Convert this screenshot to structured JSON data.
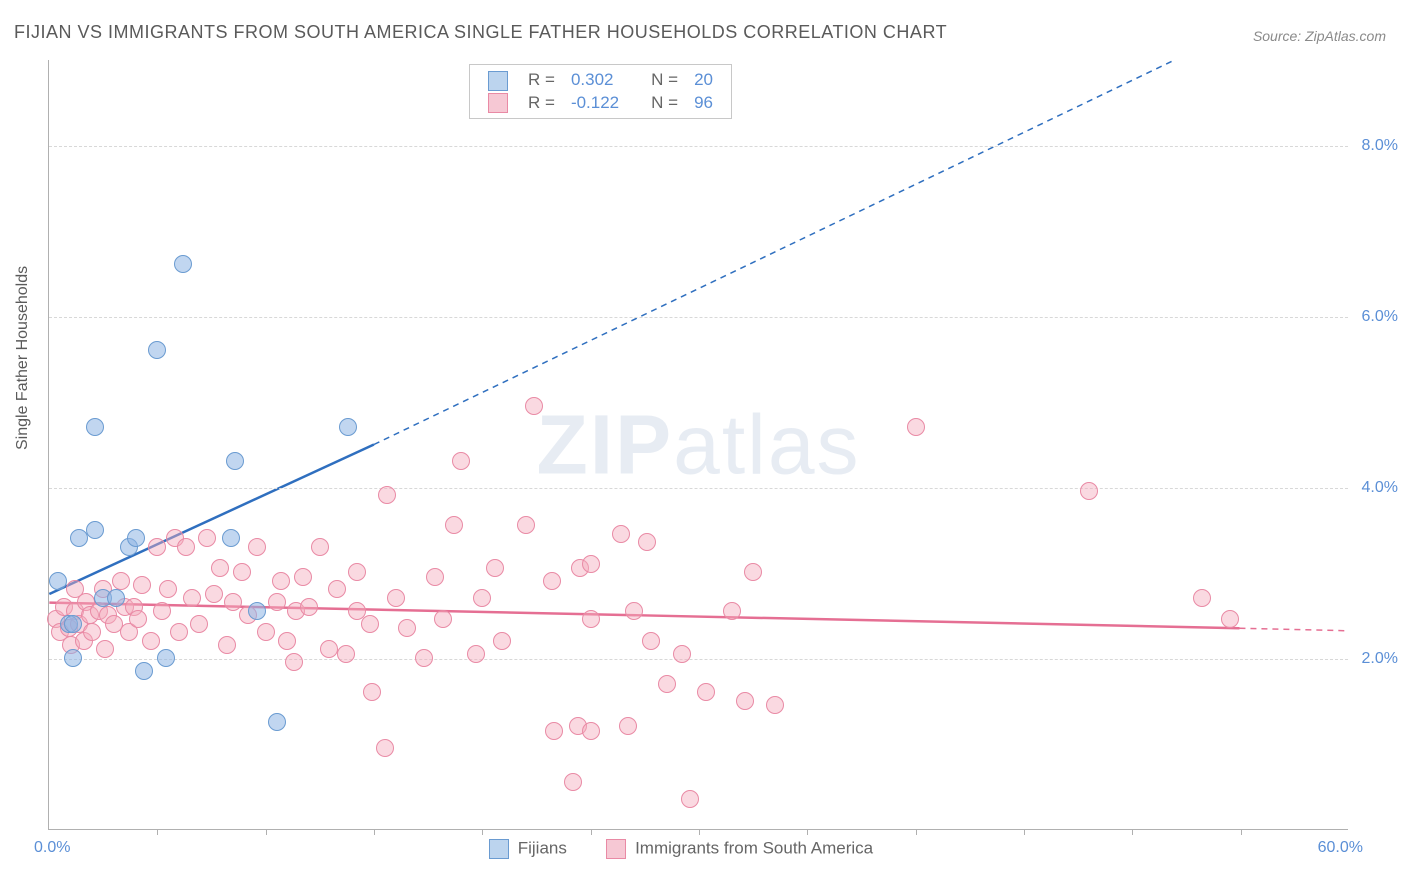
{
  "title": "FIJIAN VS IMMIGRANTS FROM SOUTH AMERICA SINGLE FATHER HOUSEHOLDS CORRELATION CHART",
  "source": "Source: ZipAtlas.com",
  "y_axis_label": "Single Father Households",
  "watermark_bold": "ZIP",
  "watermark_rest": "atlas",
  "chart": {
    "type": "scatter",
    "xlim": [
      0,
      60
    ],
    "ylim": [
      0,
      9
    ],
    "x_start_label": "0.0%",
    "x_end_label": "60.0%",
    "x_ticks": [
      5,
      10,
      15,
      20,
      25,
      30,
      35,
      40,
      45,
      50,
      55
    ],
    "y_gridlines": [
      {
        "value": 2.0,
        "label": "2.0%"
      },
      {
        "value": 4.0,
        "label": "4.0%"
      },
      {
        "value": 6.0,
        "label": "6.0%"
      },
      {
        "value": 8.0,
        "label": "8.0%"
      }
    ],
    "background_color": "#ffffff",
    "grid_color": "#d8d8d8",
    "axis_color": "#b0b0b0",
    "point_radius": 9,
    "series": [
      {
        "name": "Fijians",
        "fill": "rgba(142,180,227,0.55)",
        "stroke": "#6a9bd1",
        "R": "0.302",
        "N": "20",
        "swatch_fill": "#bcd4ee",
        "swatch_border": "#6a9bd1",
        "points": [
          [
            0.4,
            2.9
          ],
          [
            0.9,
            2.4
          ],
          [
            1.1,
            2.4
          ],
          [
            1.1,
            2.0
          ],
          [
            1.4,
            3.4
          ],
          [
            2.1,
            4.7
          ],
          [
            2.1,
            3.5
          ],
          [
            2.5,
            2.7
          ],
          [
            3.1,
            2.7
          ],
          [
            3.7,
            3.3
          ],
          [
            4.4,
            1.85
          ],
          [
            4.0,
            3.4
          ],
          [
            5.0,
            5.6
          ],
          [
            6.2,
            6.6
          ],
          [
            5.4,
            2.0
          ],
          [
            8.4,
            3.4
          ],
          [
            8.6,
            4.3
          ],
          [
            9.6,
            2.55
          ],
          [
            10.5,
            1.25
          ],
          [
            13.8,
            4.7
          ]
        ],
        "trend": {
          "color": "#2f6fbf",
          "solid": {
            "x1": 0,
            "y1": 2.75,
            "x2": 15,
            "y2": 4.5
          },
          "dashed": {
            "x1": 15,
            "y1": 4.5,
            "x2": 52,
            "y2": 9.0
          }
        }
      },
      {
        "name": "Immigrants from South America",
        "fill": "rgba(244,170,189,0.45)",
        "stroke": "#e98aa5",
        "R": "-0.122",
        "N": "96",
        "swatch_fill": "#f6c8d4",
        "swatch_border": "#e98aa5",
        "points": [
          [
            0.3,
            2.45
          ],
          [
            0.5,
            2.3
          ],
          [
            0.7,
            2.6
          ],
          [
            0.9,
            2.35
          ],
          [
            1.0,
            2.15
          ],
          [
            1.2,
            2.55
          ],
          [
            1.2,
            2.8
          ],
          [
            1.4,
            2.4
          ],
          [
            1.6,
            2.2
          ],
          [
            1.7,
            2.65
          ],
          [
            1.9,
            2.5
          ],
          [
            2.0,
            2.3
          ],
          [
            2.3,
            2.55
          ],
          [
            2.5,
            2.8
          ],
          [
            2.6,
            2.1
          ],
          [
            2.7,
            2.5
          ],
          [
            3.0,
            2.4
          ],
          [
            3.3,
            2.9
          ],
          [
            3.5,
            2.6
          ],
          [
            3.7,
            2.3
          ],
          [
            3.9,
            2.6
          ],
          [
            4.1,
            2.45
          ],
          [
            4.3,
            2.85
          ],
          [
            4.7,
            2.2
          ],
          [
            5.0,
            3.3
          ],
          [
            5.2,
            2.55
          ],
          [
            5.5,
            2.8
          ],
          [
            5.8,
            3.4
          ],
          [
            6.0,
            2.3
          ],
          [
            6.3,
            3.3
          ],
          [
            6.6,
            2.7
          ],
          [
            6.9,
            2.4
          ],
          [
            7.3,
            3.4
          ],
          [
            7.6,
            2.75
          ],
          [
            7.9,
            3.05
          ],
          [
            8.2,
            2.15
          ],
          [
            8.5,
            2.65
          ],
          [
            8.9,
            3.0
          ],
          [
            9.2,
            2.5
          ],
          [
            9.6,
            3.3
          ],
          [
            10.0,
            2.3
          ],
          [
            10.5,
            2.65
          ],
          [
            10.7,
            2.9
          ],
          [
            11.0,
            2.2
          ],
          [
            11.3,
            1.95
          ],
          [
            11.7,
            2.95
          ],
          [
            11.4,
            2.55
          ],
          [
            12.0,
            2.6
          ],
          [
            12.5,
            3.3
          ],
          [
            12.9,
            2.1
          ],
          [
            13.3,
            2.8
          ],
          [
            13.7,
            2.05
          ],
          [
            14.2,
            3.0
          ],
          [
            14.2,
            2.55
          ],
          [
            14.8,
            2.4
          ],
          [
            14.9,
            1.6
          ],
          [
            15.6,
            3.9
          ],
          [
            16.0,
            2.7
          ],
          [
            16.5,
            2.35
          ],
          [
            15.5,
            0.95
          ],
          [
            17.3,
            2.0
          ],
          [
            17.8,
            2.95
          ],
          [
            18.2,
            2.45
          ],
          [
            18.7,
            3.55
          ],
          [
            19.0,
            4.3
          ],
          [
            19.7,
            2.05
          ],
          [
            20.0,
            2.7
          ],
          [
            20.6,
            3.05
          ],
          [
            20.9,
            2.2
          ],
          [
            22.0,
            3.55
          ],
          [
            22.4,
            4.95
          ],
          [
            23.2,
            2.9
          ],
          [
            23.3,
            1.15
          ],
          [
            24.2,
            0.55
          ],
          [
            24.4,
            1.2
          ],
          [
            24.5,
            3.05
          ],
          [
            25.0,
            1.15
          ],
          [
            25.0,
            2.45
          ],
          [
            25.0,
            3.1
          ],
          [
            26.4,
            3.45
          ],
          [
            26.7,
            1.2
          ],
          [
            27.0,
            2.55
          ],
          [
            27.8,
            2.2
          ],
          [
            27.6,
            3.35
          ],
          [
            28.5,
            1.7
          ],
          [
            29.2,
            2.05
          ],
          [
            29.6,
            0.35
          ],
          [
            30.3,
            1.6
          ],
          [
            31.5,
            2.55
          ],
          [
            32.1,
            1.5
          ],
          [
            32.5,
            3.0
          ],
          [
            33.5,
            1.45
          ],
          [
            40.0,
            4.7
          ],
          [
            48.0,
            3.95
          ],
          [
            53.2,
            2.7
          ],
          [
            54.5,
            2.45
          ]
        ],
        "trend": {
          "color": "#e56f93",
          "solid": {
            "x1": 0,
            "y1": 2.65,
            "x2": 55,
            "y2": 2.35
          },
          "dashed": {
            "x1": 55,
            "y1": 2.35,
            "x2": 60,
            "y2": 2.32
          }
        }
      }
    ]
  },
  "legend": {
    "series1_label": "Fijians",
    "series2_label": "Immigrants from South America"
  },
  "stat_box": {
    "r_label": "R  =",
    "n_label": "N  ="
  }
}
